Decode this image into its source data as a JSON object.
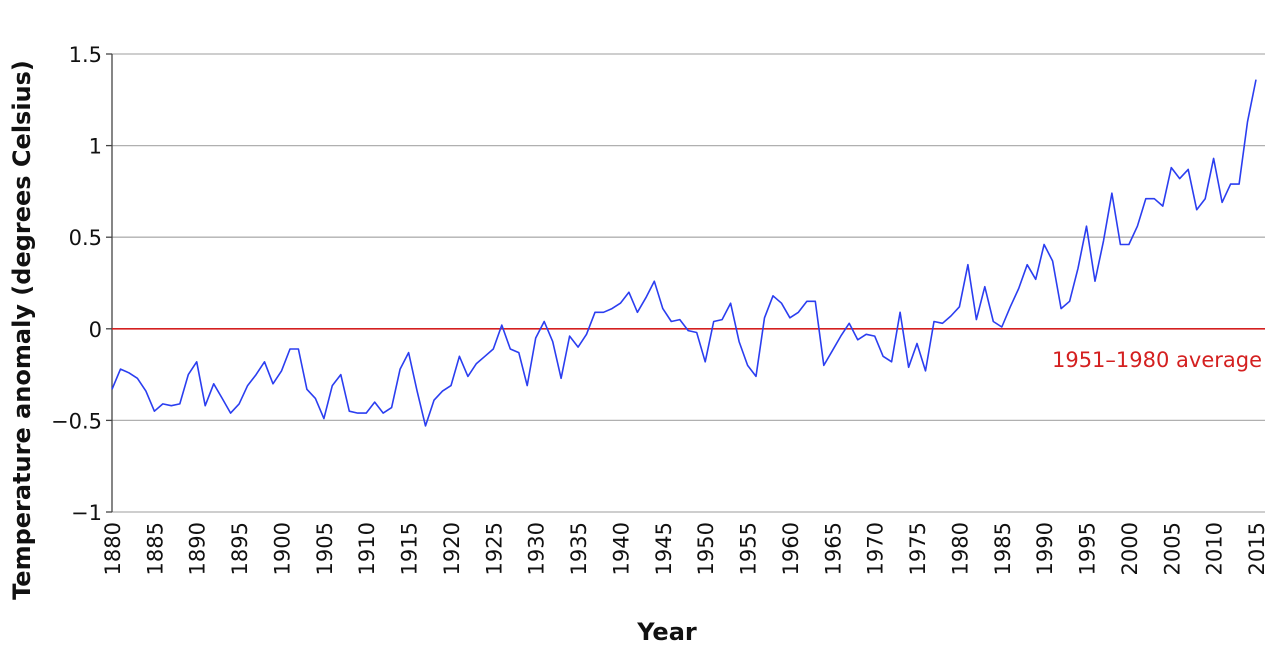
{
  "chart_data": {
    "type": "line",
    "x_label": "Year",
    "y_label": "Temperature anomaly (degrees Celsius)",
    "xlim": [
      1880,
      2015
    ],
    "xticks": [
      1880,
      1885,
      1890,
      1895,
      1900,
      1905,
      1910,
      1915,
      1920,
      1925,
      1930,
      1935,
      1940,
      1945,
      1950,
      1955,
      1960,
      1965,
      1970,
      1975,
      1980,
      1985,
      1990,
      1995,
      2000,
      2005,
      2010,
      2015
    ],
    "ylim": [
      -1,
      1.5
    ],
    "yticks": [
      {
        "value": -1,
        "label": "−1"
      },
      {
        "value": -0.5,
        "label": "−0.5"
      },
      0,
      0.5,
      1,
      1.5
    ],
    "grid": true,
    "reference_line": {
      "value": 0,
      "label": "1951–1980 average",
      "color": "#d42020"
    },
    "x": [
      1880,
      1881,
      1882,
      1883,
      1884,
      1885,
      1886,
      1887,
      1888,
      1889,
      1890,
      1891,
      1892,
      1893,
      1894,
      1895,
      1896,
      1897,
      1898,
      1899,
      1900,
      1901,
      1902,
      1903,
      1904,
      1905,
      1906,
      1907,
      1908,
      1909,
      1910,
      1911,
      1912,
      1913,
      1914,
      1915,
      1916,
      1917,
      1918,
      1919,
      1920,
      1921,
      1922,
      1923,
      1924,
      1925,
      1926,
      1927,
      1928,
      1929,
      1930,
      1931,
      1932,
      1933,
      1934,
      1935,
      1936,
      1937,
      1938,
      1939,
      1940,
      1941,
      1942,
      1943,
      1944,
      1945,
      1946,
      1947,
      1948,
      1949,
      1950,
      1951,
      1952,
      1953,
      1954,
      1955,
      1956,
      1957,
      1958,
      1959,
      1960,
      1961,
      1962,
      1963,
      1964,
      1965,
      1966,
      1967,
      1968,
      1969,
      1970,
      1971,
      1972,
      1973,
      1974,
      1975,
      1976,
      1977,
      1978,
      1979,
      1980,
      1981,
      1982,
      1983,
      1984,
      1985,
      1986,
      1987,
      1988,
      1989,
      1990,
      1991,
      1992,
      1993,
      1994,
      1995,
      1996,
      1997,
      1998,
      1999,
      2000,
      2001,
      2002,
      2003,
      2004,
      2005,
      2006,
      2007,
      2008,
      2009,
      2010,
      2011,
      2012,
      2013,
      2014,
      2015
    ],
    "series": [
      {
        "color": "#2b3ef0",
        "values": [
          -0.33,
          -0.22,
          -0.24,
          -0.27,
          -0.34,
          -0.45,
          -0.41,
          -0.42,
          -0.41,
          -0.25,
          -0.18,
          -0.42,
          -0.3,
          -0.38,
          -0.46,
          -0.41,
          -0.31,
          -0.25,
          -0.18,
          -0.3,
          -0.23,
          -0.11,
          -0.11,
          -0.33,
          -0.38,
          -0.49,
          -0.31,
          -0.25,
          -0.45,
          -0.46,
          -0.46,
          -0.4,
          -0.46,
          -0.43,
          -0.22,
          -0.13,
          -0.34,
          -0.53,
          -0.39,
          -0.34,
          -0.31,
          -0.15,
          -0.26,
          -0.19,
          -0.15,
          -0.11,
          0.02,
          -0.11,
          -0.13,
          -0.31,
          -0.05,
          0.04,
          -0.07,
          -0.27,
          -0.04,
          -0.1,
          -0.03,
          0.09,
          0.09,
          0.11,
          0.14,
          0.2,
          0.09,
          0.17,
          0.26,
          0.11,
          0.04,
          0.05,
          -0.01,
          -0.02,
          -0.18,
          0.04,
          0.05,
          0.14,
          -0.07,
          -0.2,
          -0.26,
          0.06,
          0.18,
          0.14,
          0.06,
          0.09,
          0.15,
          0.15,
          -0.2,
          -0.12,
          -0.04,
          0.03,
          -0.06,
          -0.03,
          -0.04,
          -0.15,
          -0.18,
          0.09,
          -0.21,
          -0.08,
          -0.23,
          0.04,
          0.03,
          0.07,
          0.12,
          0.35,
          0.05,
          0.23,
          0.04,
          0.01,
          0.12,
          0.22,
          0.35,
          0.27,
          0.46,
          0.37,
          0.11,
          0.15,
          0.33,
          0.56,
          0.26,
          0.48,
          0.74,
          0.46,
          0.46,
          0.56,
          0.71,
          0.71,
          0.67,
          0.88,
          0.82,
          0.87,
          0.65,
          0.71,
          0.93,
          0.69,
          0.79,
          0.79,
          1.13,
          1.36
        ]
      }
    ]
  }
}
